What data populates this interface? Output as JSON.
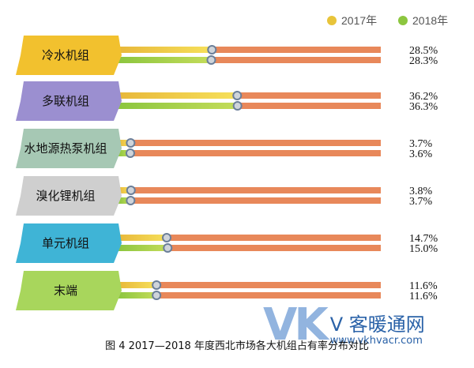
{
  "chart_data": {
    "type": "bar",
    "orientation": "horizontal",
    "max_scale": 0.8,
    "series": [
      {
        "name": "2017年",
        "color": "#e8c43a"
      },
      {
        "name": "2018年",
        "color": "#8cc63f"
      }
    ],
    "categories": [
      {
        "label": "冷水机组",
        "color": "#f2c12e",
        "values": [
          28.5,
          28.3
        ],
        "labels": [
          "28.5%",
          "28.3%"
        ]
      },
      {
        "label": "多联机组",
        "color": "#9b8fd0",
        "values": [
          36.2,
          36.3
        ],
        "labels": [
          "36.2%",
          "36.3%"
        ]
      },
      {
        "label": "水地源热泵机组",
        "color": "#a6c8b4",
        "values": [
          3.7,
          3.6
        ],
        "labels": [
          "3.7%",
          "3.6%"
        ]
      },
      {
        "label": "溴化锂机组",
        "color": "#cfcfcf",
        "values": [
          3.8,
          3.7
        ],
        "labels": [
          "3.8%",
          "3.7%"
        ]
      },
      {
        "label": "单元机组",
        "color": "#3fb4d6",
        "values": [
          14.7,
          15.0
        ],
        "labels": [
          "14.7%",
          "15.0%"
        ]
      },
      {
        "label": "末端",
        "color": "#a8d65c",
        "values": [
          11.6,
          11.6
        ],
        "labels": [
          "11.6%",
          "11.6%"
        ]
      }
    ],
    "colors": {
      "track": "#e8885a",
      "marker_fill": "#cfd4da",
      "marker_stroke": "#6b7f99"
    }
  },
  "caption": "图 4   2017—2018 年度西北市场各大机组占有率分布对比",
  "watermark": {
    "logo": "VK",
    "name": "V 客暖通网",
    "url": "www.vkhvacr.com"
  }
}
